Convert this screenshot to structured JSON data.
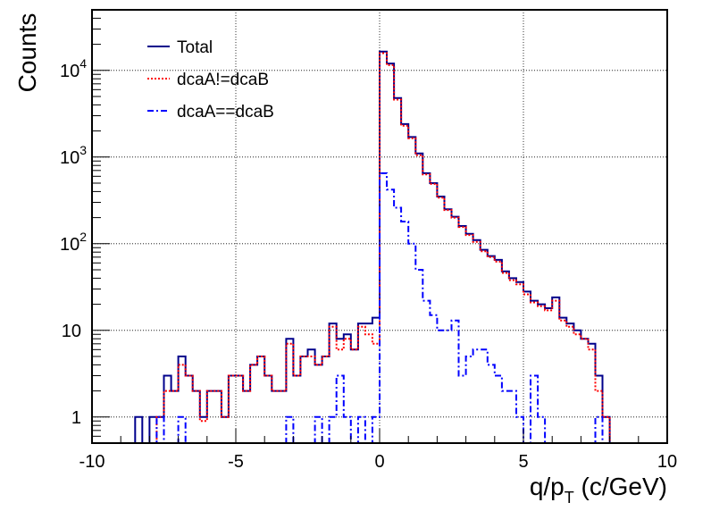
{
  "chart_data": {
    "type": "line",
    "title": "",
    "xlabel": "q/p_T (c/GeV)",
    "xlabel_parts": {
      "prefix": "q/p",
      "subscript": "T",
      "suffix": " (c/GeV)"
    },
    "ylabel": "Counts",
    "xlim": [
      -10,
      10
    ],
    "ylim": [
      0.5,
      50000
    ],
    "yscale": "log",
    "grid": true,
    "legend_position": "top-left",
    "bin_width": 0.25,
    "x_ticks": [
      {
        "value": -10,
        "label": "-10"
      },
      {
        "value": -5,
        "label": "-5"
      },
      {
        "value": 0,
        "label": "0"
      },
      {
        "value": 5,
        "label": "5"
      },
      {
        "value": 10,
        "label": "10"
      }
    ],
    "y_ticks": [
      {
        "value": 1,
        "base": "1",
        "exp": ""
      },
      {
        "value": 10,
        "base": "10",
        "exp": ""
      },
      {
        "value": 100,
        "base": "10",
        "exp": "2"
      },
      {
        "value": 1000,
        "base": "10",
        "exp": "3"
      },
      {
        "value": 10000,
        "base": "10",
        "exp": "4"
      }
    ],
    "series": [
      {
        "name": "Total",
        "color": "#00008b",
        "style": "solid",
        "bins": [
          [
            -8.5,
            1
          ],
          [
            -8.25,
            0
          ],
          [
            -8.0,
            1
          ],
          [
            -7.75,
            1
          ],
          [
            -7.5,
            3
          ],
          [
            -7.25,
            2
          ],
          [
            -7.0,
            5
          ],
          [
            -6.75,
            3
          ],
          [
            -6.5,
            2
          ],
          [
            -6.25,
            1
          ],
          [
            -6.0,
            2
          ],
          [
            -5.75,
            2
          ],
          [
            -5.5,
            1
          ],
          [
            -5.25,
            3
          ],
          [
            -5.0,
            3
          ],
          [
            -4.75,
            2
          ],
          [
            -4.5,
            4
          ],
          [
            -4.25,
            5
          ],
          [
            -4.0,
            3
          ],
          [
            -3.75,
            2
          ],
          [
            -3.5,
            2
          ],
          [
            -3.25,
            8
          ],
          [
            -3.0,
            3
          ],
          [
            -2.75,
            5
          ],
          [
            -2.5,
            6
          ],
          [
            -2.25,
            4
          ],
          [
            -2.0,
            5
          ],
          [
            -1.75,
            12
          ],
          [
            -1.5,
            8
          ],
          [
            -1.25,
            9
          ],
          [
            -1.0,
            6
          ],
          [
            -0.75,
            12
          ],
          [
            -0.5,
            12
          ],
          [
            -0.25,
            14
          ],
          [
            0.0,
            16500
          ],
          [
            0.25,
            12000
          ],
          [
            0.5,
            4800
          ],
          [
            0.75,
            2400
          ],
          [
            1.0,
            1700
          ],
          [
            1.25,
            1100
          ],
          [
            1.5,
            650
          ],
          [
            1.75,
            500
          ],
          [
            2.0,
            350
          ],
          [
            2.25,
            250
          ],
          [
            2.5,
            205
          ],
          [
            2.75,
            160
          ],
          [
            3.0,
            130
          ],
          [
            3.25,
            110
          ],
          [
            3.5,
            85
          ],
          [
            3.75,
            72
          ],
          [
            4.0,
            65
          ],
          [
            4.25,
            48
          ],
          [
            4.5,
            40
          ],
          [
            4.75,
            36
          ],
          [
            5.0,
            28
          ],
          [
            5.25,
            22
          ],
          [
            5.5,
            20
          ],
          [
            5.75,
            18
          ],
          [
            6.0,
            24
          ],
          [
            6.25,
            14
          ],
          [
            6.5,
            12
          ],
          [
            6.75,
            10
          ],
          [
            7.0,
            8
          ],
          [
            7.25,
            7
          ],
          [
            7.5,
            3
          ],
          [
            7.75,
            1
          ],
          [
            8.0,
            0
          ]
        ]
      },
      {
        "name": "dcaA!=dcaB",
        "color": "#ff0000",
        "style": "dotted",
        "bins": [
          [
            -8.5,
            0
          ],
          [
            -8.25,
            0
          ],
          [
            -8.0,
            0
          ],
          [
            -7.75,
            1
          ],
          [
            -7.5,
            2
          ],
          [
            -7.25,
            2
          ],
          [
            -7.0,
            4
          ],
          [
            -6.75,
            3
          ],
          [
            -6.5,
            2
          ],
          [
            -6.25,
            0.9
          ],
          [
            -6.0,
            2
          ],
          [
            -5.75,
            2
          ],
          [
            -5.5,
            1
          ],
          [
            -5.25,
            3
          ],
          [
            -5.0,
            3
          ],
          [
            -4.75,
            2
          ],
          [
            -4.5,
            4
          ],
          [
            -4.25,
            5
          ],
          [
            -4.0,
            3
          ],
          [
            -3.75,
            2
          ],
          [
            -3.5,
            2
          ],
          [
            -3.25,
            7
          ],
          [
            -3.0,
            3
          ],
          [
            -2.75,
            5
          ],
          [
            -2.5,
            5
          ],
          [
            -2.25,
            4
          ],
          [
            -2.0,
            5
          ],
          [
            -1.75,
            11
          ],
          [
            -1.5,
            6
          ],
          [
            -1.25,
            8
          ],
          [
            -1.0,
            6
          ],
          [
            -0.75,
            11
          ],
          [
            -0.5,
            9
          ],
          [
            -0.25,
            7
          ],
          [
            0.0,
            15800
          ],
          [
            0.25,
            11500
          ],
          [
            0.5,
            4600
          ],
          [
            0.75,
            2300
          ],
          [
            1.0,
            1650
          ],
          [
            1.25,
            1050
          ],
          [
            1.5,
            630
          ],
          [
            1.75,
            490
          ],
          [
            2.0,
            340
          ],
          [
            2.25,
            245
          ],
          [
            2.5,
            200
          ],
          [
            2.75,
            156
          ],
          [
            3.0,
            126
          ],
          [
            3.25,
            105
          ],
          [
            3.5,
            82
          ],
          [
            3.75,
            70
          ],
          [
            4.0,
            62
          ],
          [
            4.25,
            46
          ],
          [
            4.5,
            38
          ],
          [
            4.75,
            34
          ],
          [
            5.0,
            26
          ],
          [
            5.25,
            21
          ],
          [
            5.5,
            19
          ],
          [
            5.75,
            17
          ],
          [
            6.0,
            22
          ],
          [
            6.25,
            13
          ],
          [
            6.5,
            11
          ],
          [
            6.75,
            9
          ],
          [
            7.0,
            8
          ],
          [
            7.25,
            6
          ],
          [
            7.5,
            2
          ],
          [
            7.75,
            1
          ],
          [
            8.0,
            0
          ]
        ]
      },
      {
        "name": "dcaA==dcaB",
        "color": "#0000ff",
        "style": "dashdot",
        "bins": [
          [
            -8.5,
            0
          ],
          [
            -8.25,
            0
          ],
          [
            -8.0,
            0
          ],
          [
            -7.75,
            1
          ],
          [
            -7.5,
            0
          ],
          [
            -7.25,
            0
          ],
          [
            -7.0,
            1
          ],
          [
            -6.75,
            0
          ],
          [
            -6.5,
            0
          ],
          [
            -6.25,
            0
          ],
          [
            -6.0,
            0
          ],
          [
            -5.75,
            0
          ],
          [
            -5.5,
            0
          ],
          [
            -5.25,
            0
          ],
          [
            -5.0,
            0
          ],
          [
            -4.75,
            0
          ],
          [
            -4.5,
            0
          ],
          [
            -4.25,
            0
          ],
          [
            -4.0,
            0
          ],
          [
            -3.75,
            0
          ],
          [
            -3.5,
            0
          ],
          [
            -3.25,
            1
          ],
          [
            -3.0,
            0
          ],
          [
            -2.75,
            0
          ],
          [
            -2.5,
            0
          ],
          [
            -2.25,
            1
          ],
          [
            -2.0,
            0
          ],
          [
            -1.75,
            1
          ],
          [
            -1.5,
            3
          ],
          [
            -1.25,
            1
          ],
          [
            -1.0,
            0
          ],
          [
            -0.75,
            1
          ],
          [
            -0.5,
            0
          ],
          [
            -0.25,
            1
          ],
          [
            0.0,
            650
          ],
          [
            0.25,
            420
          ],
          [
            0.5,
            260
          ],
          [
            0.75,
            180
          ],
          [
            1.0,
            100
          ],
          [
            1.25,
            50
          ],
          [
            1.5,
            22
          ],
          [
            1.75,
            15
          ],
          [
            2.0,
            10
          ],
          [
            2.25,
            10
          ],
          [
            2.5,
            13
          ],
          [
            2.75,
            3
          ],
          [
            3.0,
            5
          ],
          [
            3.25,
            6
          ],
          [
            3.5,
            6
          ],
          [
            3.75,
            4
          ],
          [
            4.0,
            3
          ],
          [
            4.25,
            2
          ],
          [
            4.5,
            2
          ],
          [
            4.75,
            1
          ],
          [
            5.0,
            0
          ],
          [
            5.25,
            3
          ],
          [
            5.5,
            1
          ],
          [
            5.75,
            0
          ],
          [
            6.0,
            0
          ],
          [
            6.25,
            0
          ],
          [
            6.5,
            0
          ],
          [
            6.75,
            0
          ],
          [
            7.0,
            0
          ],
          [
            7.25,
            0
          ],
          [
            7.5,
            1
          ],
          [
            7.75,
            0
          ],
          [
            8.0,
            0
          ]
        ]
      }
    ]
  }
}
